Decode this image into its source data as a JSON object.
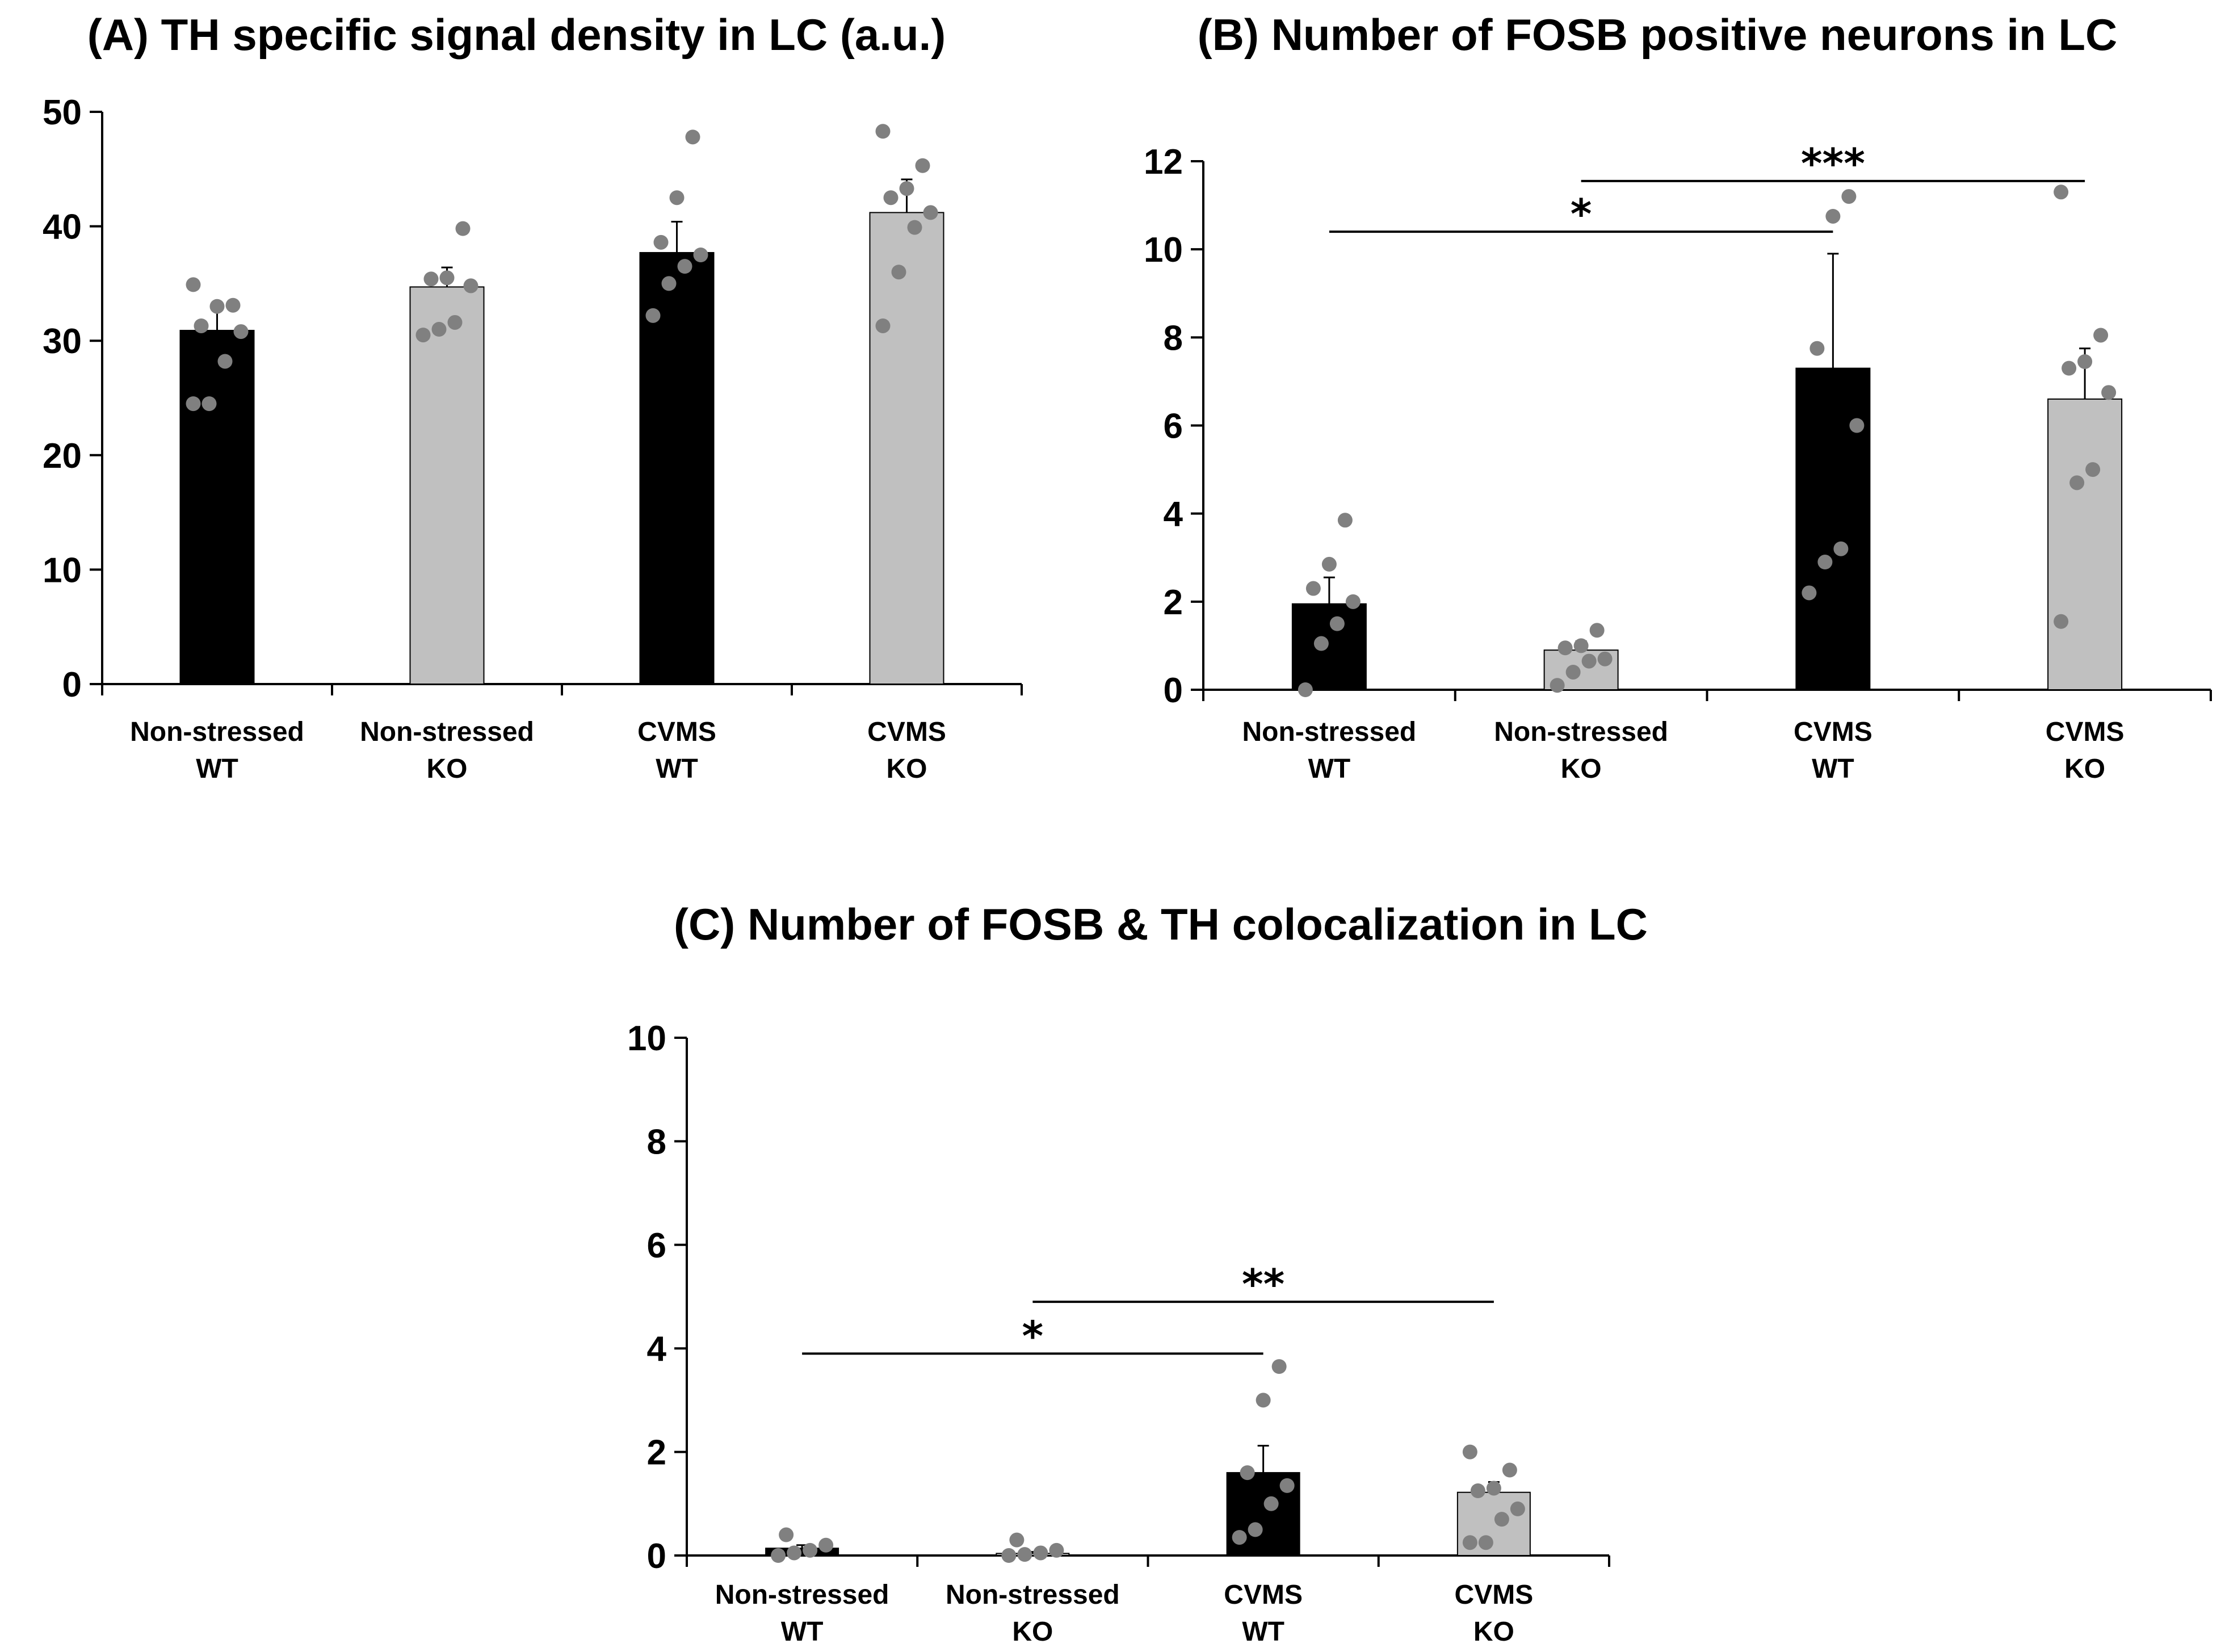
{
  "colors": {
    "wt_bar": "#000000",
    "ko_bar": "#c0c0c0",
    "dot": "#808080",
    "axis": "#000000"
  },
  "chart_data": [
    {
      "id": "A",
      "type": "bar",
      "title": "(A) TH specific signal density in LC (a.u.)",
      "categories": [
        {
          "line1": "Non-stressed",
          "line2": "WT"
        },
        {
          "line1": "Non-stressed",
          "line2": "KO"
        },
        {
          "line1": "CVMS",
          "line2": "WT"
        },
        {
          "line1": "CVMS",
          "line2": "KO"
        }
      ],
      "values": [
        30.9,
        34.7,
        37.7,
        41.2
      ],
      "errors": [
        1.9,
        1.7,
        2.7,
        2.9
      ],
      "bar_colors": [
        "wt",
        "ko",
        "wt",
        "ko"
      ],
      "points": [
        [
          24.5,
          24.5,
          28.2,
          30.8,
          31.3,
          33.0,
          33.1,
          34.9
        ],
        [
          30.5,
          31.0,
          31.6,
          34.8,
          35.4,
          35.5,
          39.8
        ],
        [
          32.2,
          35.0,
          36.5,
          37.5,
          38.6,
          42.5,
          47.8
        ],
        [
          31.3,
          36.0,
          39.9,
          41.2,
          42.5,
          43.3,
          45.3,
          48.3
        ]
      ],
      "ylim": [
        0,
        50
      ],
      "yticks": [
        "0",
        "10",
        "20",
        "30",
        "40",
        "50"
      ],
      "significance": []
    },
    {
      "id": "B",
      "type": "bar",
      "title": "(B) Number of FOSB positive neurons in LC",
      "categories": [
        {
          "line1": "Non-stressed",
          "line2": "WT"
        },
        {
          "line1": "Non-stressed",
          "line2": "KO"
        },
        {
          "line1": "CVMS",
          "line2": "WT"
        },
        {
          "line1": "CVMS",
          "line2": "KO"
        }
      ],
      "values": [
        1.95,
        0.9,
        7.3,
        6.6
      ],
      "errors": [
        0.6,
        0.2,
        2.6,
        1.15
      ],
      "bar_colors": [
        "wt",
        "ko",
        "wt",
        "ko"
      ],
      "points": [
        [
          0.0,
          1.05,
          1.5,
          2.0,
          2.3,
          2.85,
          3.85
        ],
        [
          0.1,
          0.4,
          0.65,
          0.7,
          0.95,
          1.0,
          1.35
        ],
        [
          2.2,
          2.9,
          3.2,
          6.0,
          7.75,
          10.75,
          11.2
        ],
        [
          1.55,
          4.7,
          5.0,
          6.75,
          7.3,
          7.45,
          8.05,
          11.3
        ]
      ],
      "ylim": [
        0,
        12
      ],
      "yticks": [
        "0",
        "2",
        "4",
        "6",
        "8",
        "10",
        "12"
      ],
      "significance": [
        {
          "from": 0,
          "to": 2,
          "y": 10.4,
          "label": "*"
        },
        {
          "from": 1,
          "to": 3,
          "y": 11.55,
          "label": "***"
        }
      ]
    },
    {
      "id": "C",
      "type": "bar",
      "title": "(C) Number of FOSB & TH colocalization in LC",
      "categories": [
        {
          "line1": "Non-stressed",
          "line2": "WT"
        },
        {
          "line1": "Non-stressed",
          "line2": "KO"
        },
        {
          "line1": "CVMS",
          "line2": "WT"
        },
        {
          "line1": "CVMS",
          "line2": "KO"
        }
      ],
      "values": [
        0.14,
        0.04,
        1.6,
        1.22
      ],
      "errors": [
        0.06,
        0.03,
        0.52,
        0.2
      ],
      "bar_colors": [
        "wt",
        "ko",
        "wt",
        "ko"
      ],
      "points": [
        [
          0.0,
          0.05,
          0.1,
          0.2,
          0.4
        ],
        [
          0.0,
          0.02,
          0.05,
          0.1,
          0.3
        ],
        [
          0.35,
          0.5,
          1.0,
          1.35,
          1.6,
          3.0,
          3.65
        ],
        [
          0.25,
          0.25,
          0.7,
          0.9,
          1.25,
          1.3,
          1.65,
          2.0
        ]
      ],
      "ylim": [
        0,
        10
      ],
      "yticks": [
        "0",
        "2",
        "4",
        "6",
        "8",
        "10"
      ],
      "significance": [
        {
          "from": 0,
          "to": 2,
          "y": 3.9,
          "label": "*"
        },
        {
          "from": 1,
          "to": 3,
          "y": 4.9,
          "label": "**"
        }
      ]
    }
  ]
}
